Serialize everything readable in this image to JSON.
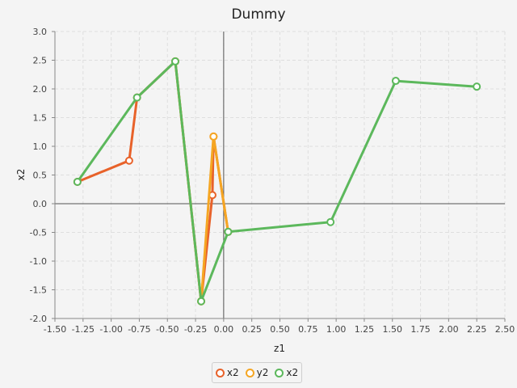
{
  "chart_data": {
    "type": "line",
    "title": "Dummy",
    "xlabel": "z1",
    "ylabel": "x2",
    "xlim": [
      -1.5,
      2.5
    ],
    "ylim": [
      -2.0,
      3.0
    ],
    "xticks": [
      "-1.50",
      "-1.25",
      "-1.00",
      "-0.75",
      "-0.50",
      "-0.25",
      "0.00",
      "0.25",
      "0.50",
      "0.75",
      "1.00",
      "1.25",
      "1.50",
      "1.75",
      "2.00",
      "2.25",
      "2.50"
    ],
    "yticks": [
      "3.0",
      "2.5",
      "2.0",
      "1.5",
      "1.0",
      "0.5",
      "0.0",
      "-0.5",
      "-1.0",
      "-1.5",
      "-2.0"
    ],
    "grid": true,
    "legend_position": "bottom",
    "series": [
      {
        "name": "x2",
        "color": "#e8622a",
        "points": [
          [
            -1.3,
            0.38
          ],
          [
            -0.84,
            0.75
          ],
          [
            -0.77,
            1.85
          ],
          [
            -0.43,
            2.48
          ],
          [
            -0.2,
            -1.7
          ],
          [
            -0.1,
            0.15
          ],
          [
            -0.09,
            1.17
          ],
          [
            0.04,
            -0.49
          ]
        ]
      },
      {
        "name": "y2",
        "color": "#f5a623",
        "points": [
          [
            -0.43,
            2.48
          ],
          [
            -0.2,
            -1.7
          ],
          [
            -0.09,
            1.17
          ],
          [
            0.04,
            -0.49
          ]
        ]
      },
      {
        "name": "x2",
        "color": "#5cb85c",
        "points": [
          [
            -1.3,
            0.38
          ],
          [
            -0.77,
            1.85
          ],
          [
            -0.43,
            2.48
          ],
          [
            -0.2,
            -1.7
          ],
          [
            0.04,
            -0.49
          ],
          [
            0.95,
            -0.32
          ],
          [
            1.53,
            2.14
          ],
          [
            2.25,
            2.04
          ]
        ]
      }
    ]
  }
}
